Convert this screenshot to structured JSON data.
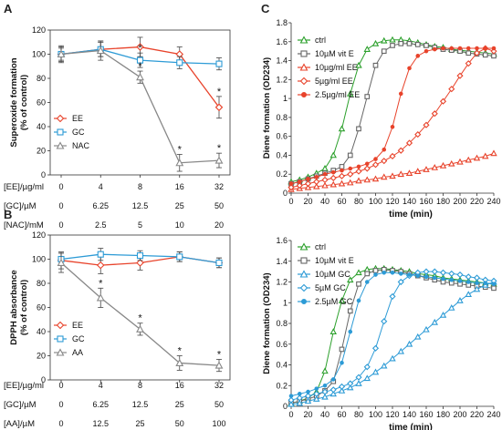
{
  "chart_data": [
    {
      "panel": "A",
      "type": "line",
      "ylabel": "Superoxide formation (% of control)",
      "ylim": [
        0,
        120
      ],
      "yticks": [
        0,
        20,
        40,
        60,
        80,
        100,
        120
      ],
      "x": [
        0,
        4,
        8,
        16,
        32
      ],
      "series": [
        {
          "name": "EE",
          "color": "#e8432b",
          "marker": "diamond",
          "values": [
            100,
            104,
            106,
            100,
            56
          ],
          "errors": [
            6,
            6,
            8,
            6,
            9
          ],
          "stars": [
            false,
            false,
            false,
            false,
            true
          ]
        },
        {
          "name": "GC",
          "color": "#2d9bd6",
          "marker": "square",
          "values": [
            100,
            104,
            95,
            93,
            92
          ],
          "errors": [
            5,
            6,
            6,
            5,
            5
          ],
          "stars": [
            false,
            false,
            true,
            false,
            false
          ]
        },
        {
          "name": "NAC",
          "color": "#888888",
          "marker": "triangle",
          "values": [
            100,
            103,
            81,
            10,
            12
          ],
          "errors": [
            7,
            8,
            5,
            7,
            6
          ],
          "stars": [
            false,
            false,
            true,
            true,
            true
          ]
        }
      ],
      "rows": [
        {
          "label": "[EE]/µg/ml",
          "values": [
            "0",
            "4",
            "8",
            "16",
            "32"
          ]
        },
        {
          "label": "[GC]/µM",
          "values": [
            "0",
            "6.25",
            "12.5",
            "25",
            "50"
          ]
        },
        {
          "label": "[NAC]/mM",
          "values": [
            "0",
            "2.5",
            "5",
            "10",
            "20"
          ]
        }
      ]
    },
    {
      "panel": "B",
      "type": "line",
      "ylabel": "DPPH absorbance (% of control)",
      "ylim": [
        0,
        120
      ],
      "yticks": [
        0,
        20,
        40,
        60,
        80,
        100,
        120
      ],
      "x": [
        0,
        4,
        8,
        16,
        32
      ],
      "series": [
        {
          "name": "EE",
          "color": "#e8432b",
          "marker": "diamond",
          "values": [
            99,
            95,
            97,
            102,
            97
          ],
          "errors": [
            7,
            7,
            6,
            4,
            4
          ],
          "stars": [
            false,
            false,
            false,
            false,
            false
          ]
        },
        {
          "name": "GC",
          "color": "#2d9bd6",
          "marker": "square",
          "values": [
            100,
            104,
            103,
            102,
            97
          ],
          "errors": [
            5,
            5,
            4,
            4,
            4
          ],
          "stars": [
            false,
            false,
            false,
            false,
            false
          ]
        },
        {
          "name": "AA",
          "color": "#888888",
          "marker": "triangle",
          "values": [
            97,
            68,
            42,
            14,
            12
          ],
          "errors": [
            8,
            8,
            5,
            6,
            5
          ],
          "stars": [
            false,
            true,
            true,
            true,
            true
          ]
        }
      ],
      "rows": [
        {
          "label": "[EE]/µg/ml",
          "values": [
            "0",
            "4",
            "8",
            "16",
            "32"
          ]
        },
        {
          "label": "[GC]/µM",
          "values": [
            "0",
            "6.25",
            "12.5",
            "25",
            "50"
          ]
        },
        {
          "label": "[AA]/µM",
          "values": [
            "0",
            "12.5",
            "25",
            "50",
            "100"
          ]
        }
      ]
    },
    {
      "panel": "C",
      "type": "line",
      "xlabel": "time (min)",
      "ylabel": "Diene formation (OD234)",
      "xlim": [
        0,
        240
      ],
      "ylim": [
        0,
        1.8
      ],
      "xticks": [
        0,
        20,
        40,
        60,
        80,
        100,
        120,
        140,
        160,
        180,
        200,
        220,
        240
      ],
      "yticks": [
        0,
        0.2,
        0.4,
        0.6,
        0.8,
        1,
        1.2,
        1.4,
        1.6,
        1.8
      ],
      "x": [
        0,
        10,
        20,
        30,
        40,
        50,
        60,
        70,
        80,
        90,
        100,
        110,
        120,
        130,
        140,
        150,
        160,
        170,
        180,
        190,
        200,
        210,
        220,
        230,
        240
      ],
      "series": [
        {
          "name": "ctrl",
          "color": "#2ca02c",
          "marker": "triangle",
          "values": [
            0.12,
            0.14,
            0.17,
            0.21,
            0.26,
            0.4,
            0.68,
            1.05,
            1.35,
            1.52,
            1.58,
            1.61,
            1.62,
            1.62,
            1.61,
            1.59,
            1.57,
            1.55,
            1.54,
            1.52,
            1.51,
            1.5,
            1.49,
            1.48,
            1.47
          ]
        },
        {
          "name": "10µM vit E",
          "color": "#666666",
          "marker": "square",
          "values": [
            0.1,
            0.12,
            0.15,
            0.18,
            0.21,
            0.24,
            0.28,
            0.4,
            0.68,
            1.02,
            1.35,
            1.5,
            1.56,
            1.58,
            1.58,
            1.57,
            1.56,
            1.54,
            1.52,
            1.51,
            1.5,
            1.48,
            1.47,
            1.46,
            1.45
          ]
        },
        {
          "name": "10µg/ml EE",
          "color": "#e8432b",
          "marker": "triangle",
          "values": [
            0.04,
            0.05,
            0.06,
            0.07,
            0.08,
            0.09,
            0.1,
            0.11,
            0.13,
            0.14,
            0.15,
            0.17,
            0.18,
            0.2,
            0.21,
            0.23,
            0.25,
            0.27,
            0.29,
            0.31,
            0.33,
            0.35,
            0.37,
            0.39,
            0.42
          ]
        },
        {
          "name": "5µg/ml EE",
          "color": "#e8432b",
          "marker": "diamond",
          "values": [
            0.06,
            0.08,
            0.1,
            0.12,
            0.14,
            0.16,
            0.18,
            0.2,
            0.23,
            0.26,
            0.3,
            0.34,
            0.39,
            0.45,
            0.53,
            0.62,
            0.72,
            0.84,
            0.97,
            1.1,
            1.24,
            1.37,
            1.48,
            1.53,
            1.5
          ]
        },
        {
          "name": "2.5µg/ml EE",
          "color": "#e8432b",
          "marker": "dot",
          "values": [
            0.1,
            0.12,
            0.15,
            0.17,
            0.2,
            0.22,
            0.24,
            0.26,
            0.28,
            0.31,
            0.36,
            0.46,
            0.7,
            1.05,
            1.32,
            1.45,
            1.5,
            1.52,
            1.53,
            1.53,
            1.53,
            1.53,
            1.53,
            1.53,
            1.53
          ]
        }
      ]
    },
    {
      "panel": "C2",
      "type": "line",
      "xlabel": "time (min)",
      "ylabel": "Diene formation (OD234)",
      "xlim": [
        0,
        240
      ],
      "ylim": [
        0,
        1.6
      ],
      "xticks": [
        0,
        20,
        40,
        60,
        80,
        100,
        120,
        140,
        160,
        180,
        200,
        220,
        240
      ],
      "yticks": [
        0,
        0.2,
        0.4,
        0.6,
        0.8,
        1,
        1.2,
        1.4,
        1.6
      ],
      "x": [
        0,
        10,
        20,
        30,
        40,
        50,
        60,
        70,
        80,
        90,
        100,
        110,
        120,
        130,
        140,
        150,
        160,
        170,
        180,
        190,
        200,
        210,
        220,
        230,
        240
      ],
      "series": [
        {
          "name": "ctrl",
          "color": "#2ca02c",
          "marker": "triangle",
          "values": [
            0.03,
            0.05,
            0.08,
            0.14,
            0.34,
            0.72,
            1.02,
            1.22,
            1.29,
            1.32,
            1.33,
            1.33,
            1.32,
            1.31,
            1.3,
            1.28,
            1.27,
            1.26,
            1.24,
            1.23,
            1.22,
            1.21,
            1.2,
            1.19,
            1.18
          ]
        },
        {
          "name": "10µM vit E",
          "color": "#666666",
          "marker": "square",
          "values": [
            0.03,
            0.05,
            0.07,
            0.1,
            0.15,
            0.24,
            0.55,
            0.92,
            1.18,
            1.28,
            1.31,
            1.32,
            1.31,
            1.3,
            1.28,
            1.26,
            1.24,
            1.22,
            1.2,
            1.19,
            1.18,
            1.17,
            1.16,
            1.15,
            1.14
          ]
        },
        {
          "name": "10µM GC",
          "color": "#2d9bd6",
          "marker": "triangle",
          "values": [
            0.02,
            0.03,
            0.05,
            0.07,
            0.09,
            0.12,
            0.15,
            0.18,
            0.22,
            0.27,
            0.33,
            0.39,
            0.46,
            0.53,
            0.6,
            0.67,
            0.74,
            0.81,
            0.88,
            0.95,
            1.02,
            1.08,
            1.13,
            1.17,
            1.2
          ]
        },
        {
          "name": "5µM GC",
          "color": "#2d9bd6",
          "marker": "diamond",
          "values": [
            0.06,
            0.08,
            0.1,
            0.12,
            0.14,
            0.16,
            0.19,
            0.22,
            0.28,
            0.38,
            0.56,
            0.82,
            1.06,
            1.2,
            1.26,
            1.29,
            1.3,
            1.3,
            1.29,
            1.28,
            1.27,
            1.25,
            1.24,
            1.22,
            1.21
          ]
        },
        {
          "name": "2.5µM GC",
          "color": "#2d9bd6",
          "marker": "dot",
          "values": [
            0.1,
            0.12,
            0.14,
            0.17,
            0.2,
            0.26,
            0.42,
            0.72,
            1.02,
            1.2,
            1.27,
            1.29,
            1.29,
            1.28,
            1.27,
            1.26,
            1.25,
            1.24,
            1.23,
            1.22,
            1.21,
            1.2,
            1.19,
            1.19,
            1.18
          ]
        }
      ]
    }
  ]
}
